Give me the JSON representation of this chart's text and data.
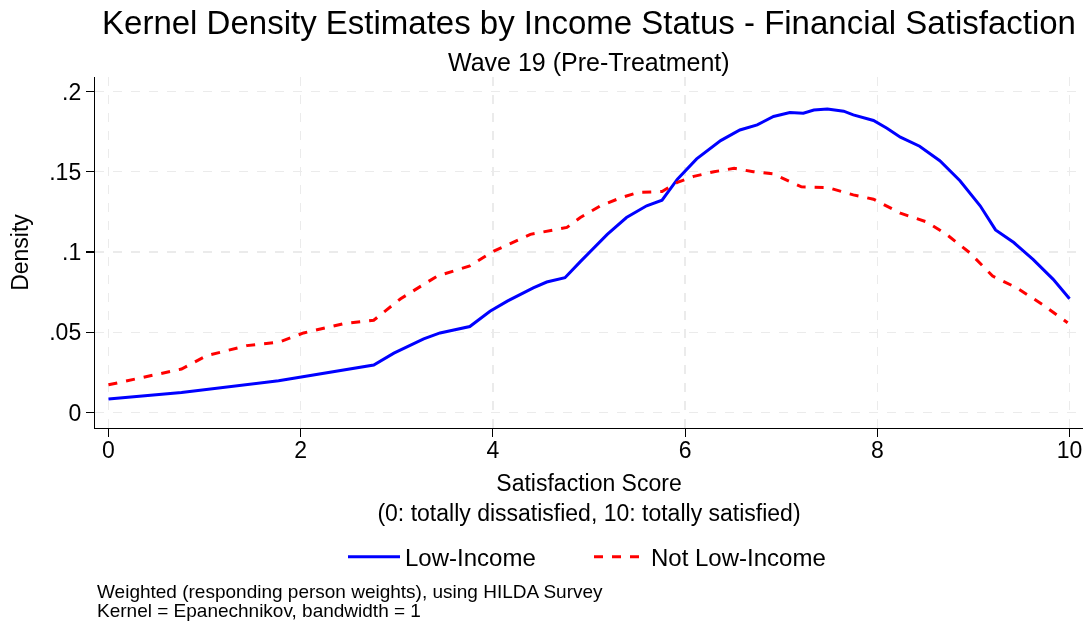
{
  "chart_data": {
    "type": "line",
    "title": "Kernel Density Estimates by Income Status - Financial Satisfaction",
    "subtitle": "Wave 19 (Pre-Treatment)",
    "xlabel": "Satisfaction Score\n(0: totally dissatisfied, 10: totally satisfied)",
    "ylabel": "Density",
    "annotations": [
      "Weighted (responding person weights), using HILDA Survey",
      "Kernel = Epanechnikov, bandwidth = 1"
    ],
    "xlim": [
      -0.14,
      10.14
    ],
    "xticks": [
      0,
      2,
      4,
      6,
      8,
      10
    ],
    "ylim": [
      -0.0096,
      0.209
    ],
    "yticks": [
      0,
      {
        "value": 0.05,
        "label": ".05"
      },
      {
        "value": 0.1,
        "label": ".1"
      },
      {
        "value": 0.15,
        "label": ".15"
      },
      {
        "value": 0.2,
        "label": ".2"
      }
    ],
    "grid": true,
    "legend": "bottom",
    "series": [
      {
        "name": "Low-Income",
        "color": "#0000ff",
        "line_style": "solid",
        "x": [
          0,
          0.76,
          1.77,
          2.76,
          2.97,
          3.28,
          3.45,
          3.76,
          3.97,
          4.15,
          4.42,
          4.56,
          4.75,
          4.91,
          5.19,
          5.39,
          5.6,
          5.76,
          5.92,
          6.12,
          6.37,
          6.57,
          6.75,
          6.92,
          7.09,
          7.23,
          7.34,
          7.48,
          7.65,
          7.75,
          7.96,
          8.1,
          8.24,
          8.44,
          8.65,
          8.86,
          9.07,
          9.23,
          9.42,
          9.62,
          9.83,
          10
        ],
        "values": [
          0.0084,
          0.0125,
          0.0198,
          0.0296,
          0.037,
          0.0459,
          0.0496,
          0.0536,
          0.0631,
          0.0694,
          0.0777,
          0.0813,
          0.084,
          0.094,
          0.111,
          0.1215,
          0.1288,
          0.1323,
          0.1454,
          0.158,
          0.1694,
          0.176,
          0.1792,
          0.1844,
          0.1869,
          0.1865,
          0.1884,
          0.189,
          0.1877,
          0.1854,
          0.1819,
          0.1771,
          0.1715,
          0.1659,
          0.1569,
          0.1444,
          0.1288,
          0.1138,
          0.1059,
          0.0954,
          0.083,
          0.0709
        ]
      },
      {
        "name": "Not Low-Income",
        "color": "#ff0000",
        "line_style": "dashed",
        "x": [
          0,
          0.76,
          1.02,
          1.44,
          1.77,
          2.03,
          2.45,
          2.76,
          3.04,
          3.42,
          3.76,
          4.01,
          4.39,
          4.77,
          4.91,
          5.12,
          5.34,
          5.51,
          5.76,
          5.92,
          6.09,
          6.3,
          6.51,
          6.71,
          6.92,
          7.21,
          7.48,
          7.75,
          7.96,
          8.24,
          8.51,
          8.72,
          8.96,
          9.2,
          9.45,
          9.72,
          9.98
        ],
        "values": [
          0.0173,
          0.0271,
          0.0354,
          0.0417,
          0.0438,
          0.0496,
          0.0554,
          0.0575,
          0.0709,
          0.085,
          0.0913,
          0.1006,
          0.111,
          0.1153,
          0.1215,
          0.1288,
          0.134,
          0.1371,
          0.1377,
          0.1434,
          0.1471,
          0.15,
          0.1521,
          0.15,
          0.1486,
          0.1406,
          0.1402,
          0.1356,
          0.1329,
          0.1242,
          0.1188,
          0.111,
          0.0996,
          0.085,
          0.0777,
          0.0673,
          0.0559
        ]
      }
    ]
  }
}
